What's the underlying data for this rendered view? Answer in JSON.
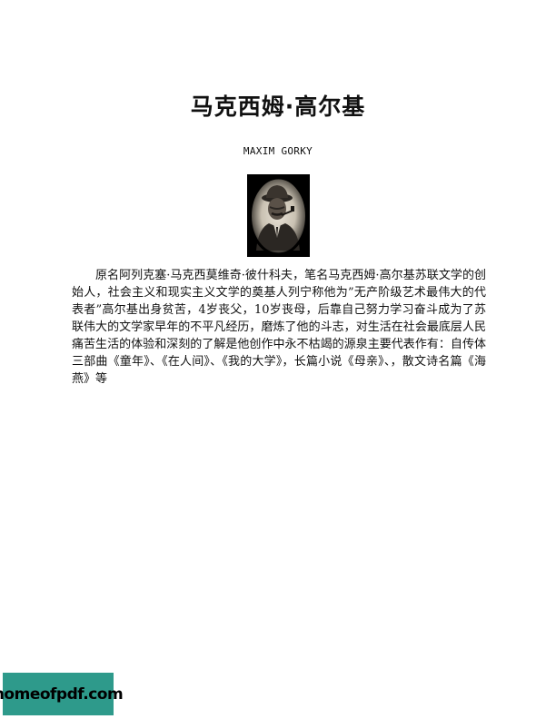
{
  "document": {
    "title": "马克西姆·高尔基",
    "subtitle": "MAXIM GORKY",
    "body": "原名阿列克塞·马克西莫维奇·彼什科夫，笔名马克西姆·高尔基苏联文学的创始人，社会主义和现实主义文学的奠基人列宁称他为”无产阶级艺术最伟大的代表者”高尔基出身贫苦，4岁丧父，10岁丧母，后靠自己努力学习奋斗成为了苏联伟大的文学家早年的不平凡经历，磨炼了他的斗志，对生活在社会最底层人民痛苦生活的体验和深刻的了解是他创作中永不枯竭的源泉主要代表作有：自传体三部曲《童年》、《在人间》、《我的大学》，长篇小说《母亲》、，散文诗名篇《海燕》等"
  },
  "watermark": {
    "text": "homeofpdf.com",
    "color": "#2e9a8b"
  },
  "portrait": {
    "icon": "portrait-photo-icon"
  }
}
